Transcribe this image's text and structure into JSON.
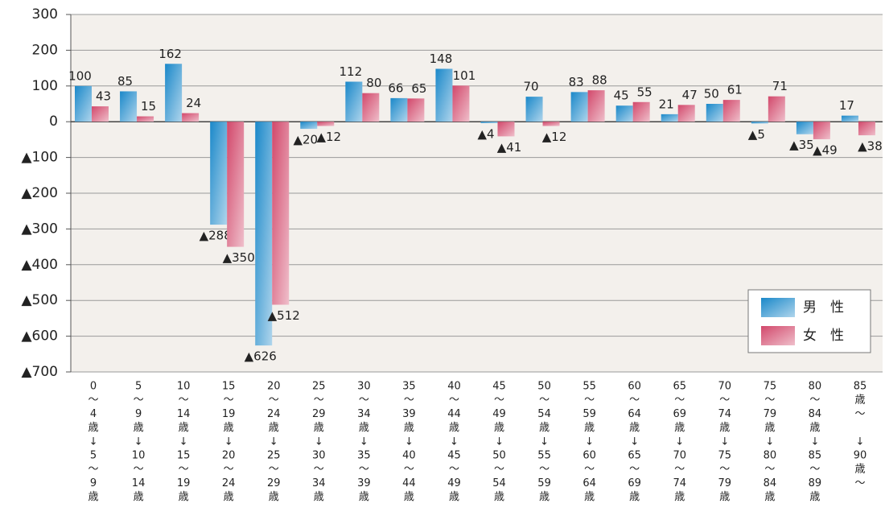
{
  "chart_data": {
    "type": "bar",
    "categories": [
      [
        "0",
        "～",
        "4",
        "歳",
        "↓",
        "5",
        "～",
        "9",
        "歳"
      ],
      [
        "5",
        "～",
        "9",
        "歳",
        "↓",
        "10",
        "～",
        "14",
        "歳"
      ],
      [
        "10",
        "～",
        "14",
        "歳",
        "↓",
        "15",
        "～",
        "19",
        "歳"
      ],
      [
        "15",
        "～",
        "19",
        "歳",
        "↓",
        "20",
        "～",
        "24",
        "歳"
      ],
      [
        "20",
        "～",
        "24",
        "歳",
        "↓",
        "25",
        "～",
        "29",
        "歳"
      ],
      [
        "25",
        "～",
        "29",
        "歳",
        "↓",
        "30",
        "～",
        "34",
        "歳"
      ],
      [
        "30",
        "～",
        "34",
        "歳",
        "↓",
        "35",
        "～",
        "39",
        "歳"
      ],
      [
        "35",
        "～",
        "39",
        "歳",
        "↓",
        "40",
        "～",
        "44",
        "歳"
      ],
      [
        "40",
        "～",
        "44",
        "歳",
        "↓",
        "45",
        "～",
        "49",
        "歳"
      ],
      [
        "45",
        "～",
        "49",
        "歳",
        "↓",
        "50",
        "～",
        "54",
        "歳"
      ],
      [
        "50",
        "～",
        "54",
        "歳",
        "↓",
        "55",
        "～",
        "59",
        "歳"
      ],
      [
        "55",
        "～",
        "59",
        "歳",
        "↓",
        "60",
        "～",
        "64",
        "歳"
      ],
      [
        "60",
        "～",
        "64",
        "歳",
        "↓",
        "65",
        "～",
        "69",
        "歳"
      ],
      [
        "65",
        "～",
        "69",
        "歳",
        "↓",
        "70",
        "～",
        "74",
        "歳"
      ],
      [
        "70",
        "～",
        "74",
        "歳",
        "↓",
        "75",
        "～",
        "79",
        "歳"
      ],
      [
        "75",
        "～",
        "79",
        "歳",
        "↓",
        "80",
        "～",
        "84",
        "歳"
      ],
      [
        "80",
        "～",
        "84",
        "歳",
        "↓",
        "85",
        "～",
        "89",
        "歳"
      ],
      [
        "85",
        "歳",
        "～",
        "↓",
        "90",
        "歳",
        "～"
      ]
    ],
    "series": [
      {
        "name": "男　性",
        "color": "#1a88c9",
        "values": [
          100,
          85,
          162,
          -288,
          -626,
          -20,
          112,
          66,
          148,
          -4,
          70,
          83,
          45,
          21,
          50,
          -5,
          -35,
          17
        ],
        "value_labels": [
          "100",
          "85",
          "162",
          "▲288",
          "▲626",
          "▲20",
          "112",
          "66",
          "148",
          "▲4",
          "70",
          "83",
          "45",
          "21",
          "50",
          "▲5",
          "▲35",
          "17"
        ]
      },
      {
        "name": "女　性",
        "color": "#d2486b",
        "values": [
          43,
          15,
          24,
          -350,
          -512,
          -12,
          80,
          65,
          101,
          -41,
          -12,
          88,
          55,
          47,
          61,
          71,
          -49,
          -38
        ],
        "value_labels": [
          "43",
          "15",
          "24",
          "▲350",
          "▲512",
          "▲12",
          "80",
          "65",
          "101",
          "▲41",
          "▲12",
          "88",
          "55",
          "47",
          "61",
          "71",
          "▲49",
          "▲38"
        ]
      }
    ],
    "ylim": [
      -700,
      300
    ],
    "yticks": [
      300,
      200,
      100,
      0,
      {
        "value": -100,
        "label": "▲100"
      },
      {
        "value": -200,
        "label": "▲200"
      },
      {
        "value": -300,
        "label": "▲300"
      },
      {
        "value": -400,
        "label": "▲400"
      },
      {
        "value": -500,
        "label": "▲500"
      },
      {
        "value": -600,
        "label": "▲600"
      },
      {
        "value": -700,
        "label": "▲700"
      }
    ],
    "grid": true,
    "legend": "lower right"
  }
}
